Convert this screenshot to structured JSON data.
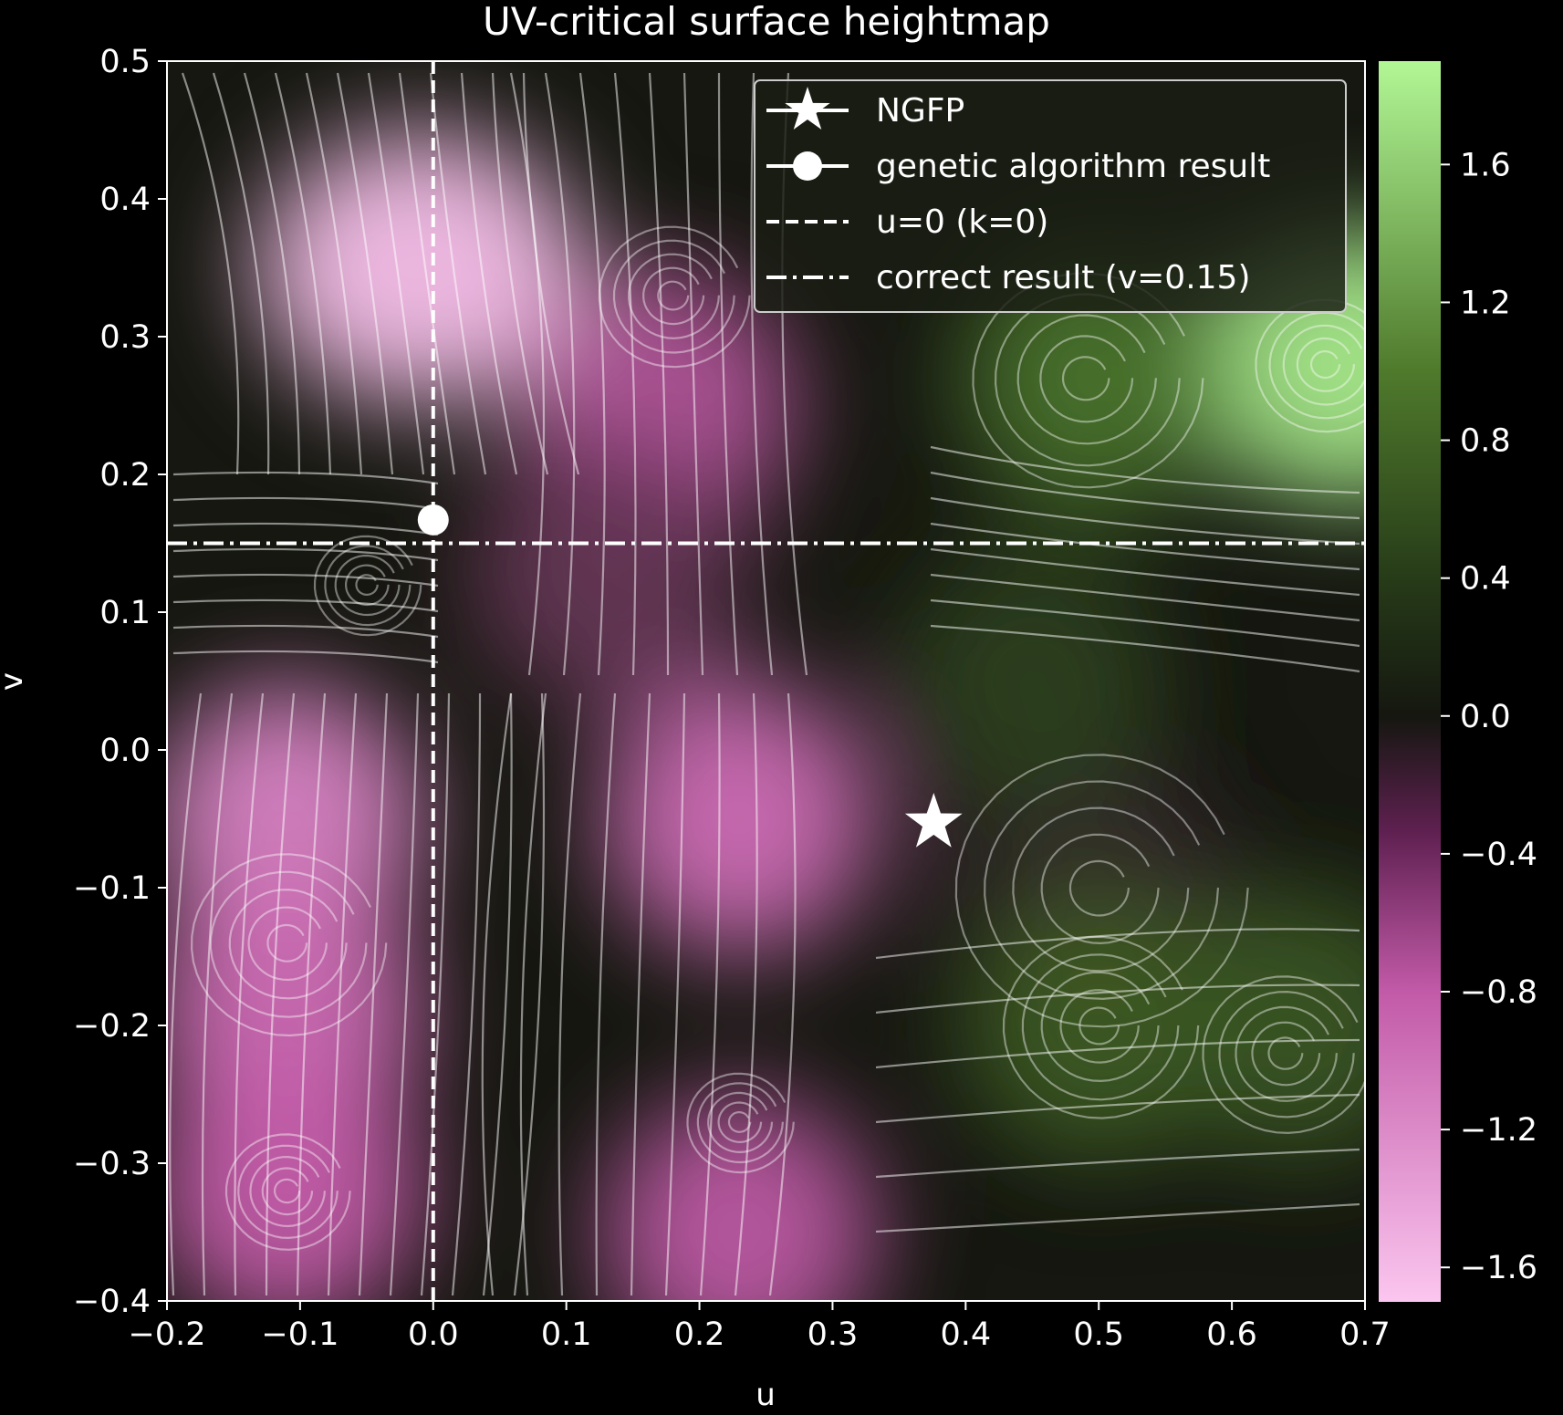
{
  "chart_data": {
    "type": "heatmap",
    "title": "UV-critical surface heightmap",
    "xlabel": "u",
    "ylabel": "v",
    "xlim": [
      -0.2,
      0.7
    ],
    "ylim": [
      -0.4,
      0.5
    ],
    "xticks": [
      -0.2,
      -0.1,
      0.0,
      0.1,
      0.2,
      0.3,
      0.4,
      0.5,
      0.6,
      0.7
    ],
    "yticks": [
      -0.4,
      -0.3,
      -0.2,
      -0.1,
      0.0,
      0.1,
      0.2,
      0.3,
      0.4,
      0.5
    ],
    "xtick_labels": [
      "−0.2",
      "−0.1",
      "0.0",
      "0.1",
      "0.2",
      "0.3",
      "0.4",
      "0.5",
      "0.6",
      "0.7"
    ],
    "ytick_labels": [
      "−0.4",
      "−0.3",
      "−0.2",
      "−0.1",
      "0.0",
      "0.1",
      "0.2",
      "0.3",
      "0.4",
      "0.5"
    ],
    "colorbar": {
      "range": [
        -1.7,
        1.9
      ],
      "ticks": [
        -1.6,
        -1.2,
        -0.8,
        -0.4,
        0.0,
        0.4,
        0.8,
        1.2,
        1.6
      ],
      "tick_labels": [
        "−1.6",
        "−1.2",
        "−0.8",
        "−0.4",
        "0.0",
        "0.4",
        "0.8",
        "1.2",
        "1.6"
      ],
      "colors": {
        "low": "#fbc6ef",
        "mid": "#151710",
        "high": "#b2f796"
      }
    },
    "heightmap_features": [
      {
        "u": -0.01,
        "v": 0.35,
        "value": -1.55
      },
      {
        "u": -0.11,
        "v": -0.05,
        "value": -1.15
      },
      {
        "u": -0.11,
        "v": -0.19,
        "value": -1.0
      },
      {
        "u": -0.11,
        "v": -0.32,
        "value": -0.9
      },
      {
        "u": 0.17,
        "v": 0.25,
        "value": -0.8
      },
      {
        "u": 0.23,
        "v": -0.05,
        "value": -1.0
      },
      {
        "u": 0.23,
        "v": -0.35,
        "value": -0.85
      },
      {
        "u": 0.13,
        "v": 0.13,
        "value": -0.4
      },
      {
        "u": 0.5,
        "v": -0.1,
        "value": -0.15
      },
      {
        "u": 0.69,
        "v": 0.28,
        "value": 1.65
      },
      {
        "u": 0.5,
        "v": 0.27,
        "value": 0.8
      },
      {
        "u": 0.5,
        "v": -0.2,
        "value": 0.6
      },
      {
        "u": 0.65,
        "v": -0.2,
        "value": 0.55
      },
      {
        "u": 0.45,
        "v": 0.05,
        "value": 0.35
      }
    ],
    "markers": [
      {
        "name": "NGFP",
        "u": 0.376,
        "v": -0.053,
        "marker": "star"
      },
      {
        "name": "genetic algorithm result",
        "u": 0.0,
        "v": 0.167,
        "marker": "circle"
      }
    ],
    "lines": [
      {
        "name": "u=0 (k=0)",
        "orientation": "vertical",
        "u": 0.0,
        "style": "dashed"
      },
      {
        "name": "correct result (v=0.15)",
        "orientation": "horizontal",
        "v": 0.15,
        "style": "dashdot"
      }
    ],
    "legend": {
      "placement": "upper-right",
      "entries": [
        "NGFP",
        "genetic algorithm result",
        "u=0 (k=0)",
        "correct result (v=0.15)"
      ]
    },
    "streamlines": true,
    "grid": false
  }
}
